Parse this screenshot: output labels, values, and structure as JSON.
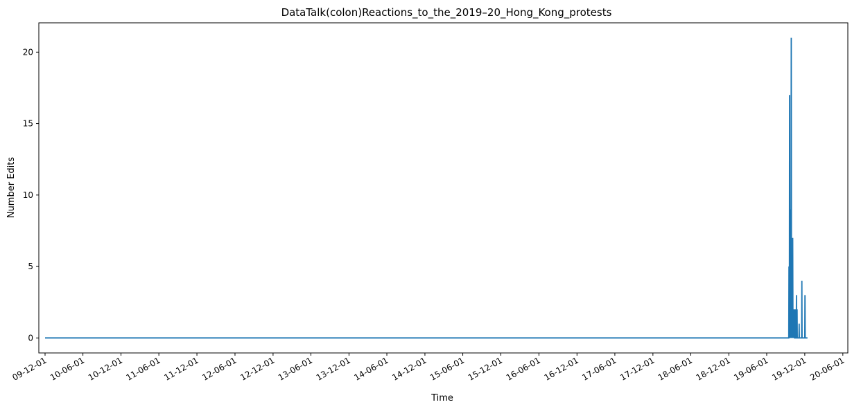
{
  "chart_data": {
    "type": "line",
    "title": "DataTalk(colon)Reactions_to_the_2019–20_Hong_Kong_protests",
    "xlabel": "Time",
    "ylabel": "Number Edits",
    "xlim": [
      "2009-11-01",
      "2020-06-25"
    ],
    "ylim": [
      -1.05,
      22.05
    ],
    "x_ticks": [
      "2009-12-01",
      "2010-06-01",
      "2010-12-01",
      "2011-06-01",
      "2011-12-01",
      "2012-06-01",
      "2012-12-01",
      "2013-06-01",
      "2013-12-01",
      "2014-06-01",
      "2014-12-01",
      "2015-06-01",
      "2015-12-01",
      "2016-06-01",
      "2016-12-01",
      "2017-06-01",
      "2017-12-01",
      "2018-06-01",
      "2018-12-01",
      "2019-06-01",
      "2019-12-01",
      "2020-06-01"
    ],
    "x_tick_labels": [
      "09-12-01",
      "10-06-01",
      "10-12-01",
      "11-06-01",
      "11-12-01",
      "12-06-01",
      "12-12-01",
      "13-06-01",
      "13-12-01",
      "14-06-01",
      "14-12-01",
      "15-06-01",
      "15-12-01",
      "16-06-01",
      "16-12-01",
      "17-06-01",
      "17-12-01",
      "18-06-01",
      "18-12-01",
      "19-06-01",
      "19-12-01",
      "20-06-01"
    ],
    "y_ticks": [
      0,
      5,
      10,
      15,
      20
    ],
    "y_tick_labels": [
      "0",
      "5",
      "10",
      "15",
      "20"
    ],
    "grid": false,
    "color": "#1f77b4",
    "series": [
      {
        "x": [
          "2009-12-01",
          "2019-09-15",
          "2019-09-16",
          "2019-09-17",
          "2019-09-18",
          "2019-09-19",
          "2019-09-20",
          "2019-09-21",
          "2019-09-22",
          "2019-09-23",
          "2019-09-24",
          "2019-09-25",
          "2019-09-26",
          "2019-09-27",
          "2019-09-28",
          "2019-09-29",
          "2019-09-30",
          "2019-10-01",
          "2019-10-02",
          "2019-10-03",
          "2019-10-04",
          "2019-10-05",
          "2019-10-06",
          "2019-10-07",
          "2019-10-08",
          "2019-10-10",
          "2019-10-11",
          "2019-10-12",
          "2019-10-13",
          "2019-10-14",
          "2019-10-15",
          "2019-10-16",
          "2019-10-18",
          "2019-10-19",
          "2019-10-21",
          "2019-10-22",
          "2019-10-23",
          "2019-10-25",
          "2019-10-26",
          "2019-10-28",
          "2019-10-29",
          "2019-11-02",
          "2019-11-03",
          "2019-11-04",
          "2019-11-05",
          "2019-11-06",
          "2019-11-07",
          "2019-11-08",
          "2019-11-09",
          "2019-11-15",
          "2019-11-16",
          "2019-11-17",
          "2019-11-18",
          "2019-11-19",
          "2019-11-30",
          "2019-12-01",
          "2019-12-02",
          "2019-12-03",
          "2019-12-09",
          "2019-12-10",
          "2019-12-11",
          "2019-12-12",
          "2019-12-14"
        ],
        "y": [
          0,
          0,
          5,
          0,
          2,
          17,
          3,
          0,
          4,
          9,
          0,
          6,
          8,
          21,
          2,
          0,
          5,
          2,
          1,
          0,
          7,
          2,
          0,
          1,
          0,
          2,
          0,
          1,
          0,
          0,
          2,
          0,
          2,
          0,
          0,
          3,
          0,
          2,
          0,
          0,
          0,
          0,
          0,
          1,
          0,
          0,
          0,
          0,
          0,
          0,
          0,
          4,
          0,
          0,
          0,
          0,
          3,
          0,
          0,
          0,
          0,
          0,
          0
        ]
      }
    ]
  }
}
